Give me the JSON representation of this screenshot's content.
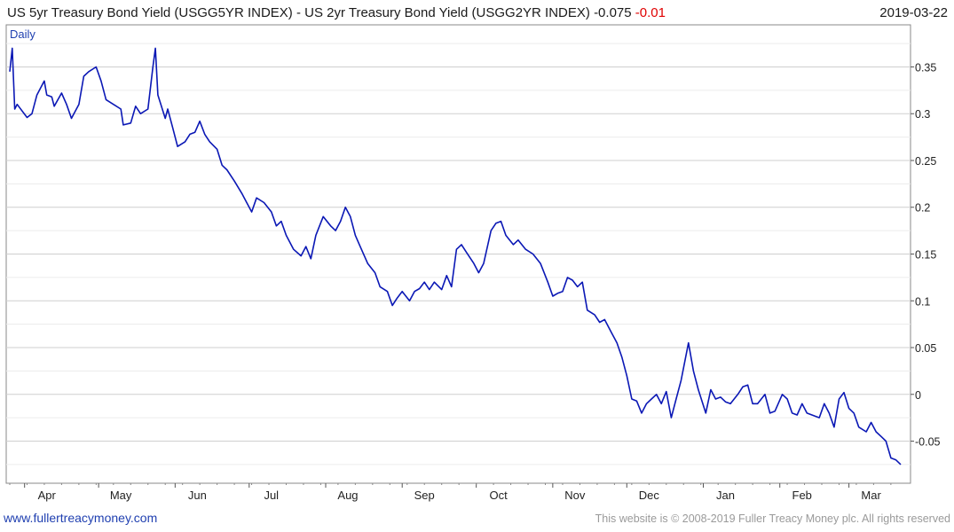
{
  "header": {
    "title": "US 5yr Treasury Bond Yield (USGG5YR INDEX) - US 2yr Treasury Bond Yield (USGG2YR INDEX)",
    "last_value": "-0.075",
    "change": "-0.01",
    "date": "2019-03-22"
  },
  "period_label": "Daily",
  "footer": {
    "site": "www.fullertreacymoney.com",
    "copyright": "This website is © 2008-2019 Fuller Treacy Money plc. All rights reserved"
  },
  "colors": {
    "line": "#0b18b5",
    "change": "#e00000",
    "grid": "#cfcfcf",
    "site_link": "#1f3fb0"
  },
  "chart_data": {
    "type": "line",
    "title": "US 5yr Treasury Bond Yield (USGG5YR INDEX) - US 2yr Treasury Bond Yield (USGG2YR INDEX)",
    "ylim": [
      -0.095,
      0.395
    ],
    "y_ticks": [
      0.35,
      0.3,
      0.25,
      0.2,
      0.15,
      0.1,
      0.05,
      0,
      -0.05
    ],
    "y_tick_labels": [
      "0.35",
      "0.3",
      "0.25",
      "0.2",
      "0.15",
      "0.1",
      "0.05",
      "0",
      "-0.05"
    ],
    "x_range": [
      "2018-03-26",
      "2019-03-22"
    ],
    "x_ticks": [
      {
        "date": "2018-04-01",
        "label": "Apr"
      },
      {
        "date": "2018-05-01",
        "label": "May"
      },
      {
        "date": "2018-06-01",
        "label": "Jun"
      },
      {
        "date": "2018-07-01",
        "label": "Jul"
      },
      {
        "date": "2018-08-01",
        "label": "Aug"
      },
      {
        "date": "2018-09-01",
        "label": "Sep"
      },
      {
        "date": "2018-10-01",
        "label": "Oct"
      },
      {
        "date": "2018-11-01",
        "label": "Nov"
      },
      {
        "date": "2018-12-01",
        "label": "Dec"
      },
      {
        "date": "2019-01-01",
        "label": "Jan"
      },
      {
        "date": "2019-02-01",
        "label": "Feb"
      },
      {
        "date": "2019-03-01",
        "label": "Mar"
      }
    ],
    "grid": true,
    "series": [
      {
        "values": [
          [
            "2018-03-26",
            0.345
          ],
          [
            "2018-03-27",
            0.37
          ],
          [
            "2018-03-28",
            0.305
          ],
          [
            "2018-03-29",
            0.31
          ],
          [
            "2018-04-02",
            0.296
          ],
          [
            "2018-04-04",
            0.3
          ],
          [
            "2018-04-06",
            0.32
          ],
          [
            "2018-04-09",
            0.335
          ],
          [
            "2018-04-10",
            0.32
          ],
          [
            "2018-04-12",
            0.318
          ],
          [
            "2018-04-13",
            0.308
          ],
          [
            "2018-04-16",
            0.322
          ],
          [
            "2018-04-18",
            0.31
          ],
          [
            "2018-04-20",
            0.295
          ],
          [
            "2018-04-23",
            0.31
          ],
          [
            "2018-04-25",
            0.34
          ],
          [
            "2018-04-27",
            0.345
          ],
          [
            "2018-04-30",
            0.35
          ],
          [
            "2018-05-02",
            0.335
          ],
          [
            "2018-05-04",
            0.315
          ],
          [
            "2018-05-07",
            0.31
          ],
          [
            "2018-05-10",
            0.305
          ],
          [
            "2018-05-11",
            0.288
          ],
          [
            "2018-05-14",
            0.29
          ],
          [
            "2018-05-16",
            0.308
          ],
          [
            "2018-05-18",
            0.3
          ],
          [
            "2018-05-21",
            0.305
          ],
          [
            "2018-05-23",
            0.35
          ],
          [
            "2018-05-24",
            0.37
          ],
          [
            "2018-05-25",
            0.32
          ],
          [
            "2018-05-28",
            0.295
          ],
          [
            "2018-05-29",
            0.305
          ],
          [
            "2018-05-31",
            0.285
          ],
          [
            "2018-06-02",
            0.265
          ],
          [
            "2018-06-05",
            0.27
          ],
          [
            "2018-06-07",
            0.278
          ],
          [
            "2018-06-09",
            0.28
          ],
          [
            "2018-06-11",
            0.292
          ],
          [
            "2018-06-13",
            0.278
          ],
          [
            "2018-06-15",
            0.27
          ],
          [
            "2018-06-18",
            0.262
          ],
          [
            "2018-06-20",
            0.245
          ],
          [
            "2018-06-22",
            0.24
          ],
          [
            "2018-06-25",
            0.228
          ],
          [
            "2018-06-28",
            0.215
          ],
          [
            "2018-06-30",
            0.205
          ],
          [
            "2018-07-02",
            0.195
          ],
          [
            "2018-07-04",
            0.21
          ],
          [
            "2018-07-07",
            0.205
          ],
          [
            "2018-07-10",
            0.195
          ],
          [
            "2018-07-12",
            0.18
          ],
          [
            "2018-07-14",
            0.185
          ],
          [
            "2018-07-16",
            0.17
          ],
          [
            "2018-07-19",
            0.155
          ],
          [
            "2018-07-22",
            0.148
          ],
          [
            "2018-07-24",
            0.158
          ],
          [
            "2018-07-26",
            0.145
          ],
          [
            "2018-07-28",
            0.17
          ],
          [
            "2018-07-31",
            0.19
          ],
          [
            "2018-08-03",
            0.18
          ],
          [
            "2018-08-05",
            0.175
          ],
          [
            "2018-08-07",
            0.185
          ],
          [
            "2018-08-09",
            0.2
          ],
          [
            "2018-08-11",
            0.19
          ],
          [
            "2018-08-13",
            0.17
          ],
          [
            "2018-08-15",
            0.158
          ],
          [
            "2018-08-18",
            0.14
          ],
          [
            "2018-08-21",
            0.13
          ],
          [
            "2018-08-23",
            0.115
          ],
          [
            "2018-08-26",
            0.11
          ],
          [
            "2018-08-28",
            0.095
          ],
          [
            "2018-08-30",
            0.103
          ],
          [
            "2018-09-01",
            0.11
          ],
          [
            "2018-09-04",
            0.1
          ],
          [
            "2018-09-06",
            0.11
          ],
          [
            "2018-09-08",
            0.113
          ],
          [
            "2018-09-10",
            0.12
          ],
          [
            "2018-09-12",
            0.112
          ],
          [
            "2018-09-14",
            0.12
          ],
          [
            "2018-09-17",
            0.112
          ],
          [
            "2018-09-19",
            0.127
          ],
          [
            "2018-09-21",
            0.115
          ],
          [
            "2018-09-23",
            0.155
          ],
          [
            "2018-09-25",
            0.16
          ],
          [
            "2018-09-27",
            0.152
          ],
          [
            "2018-09-30",
            0.14
          ],
          [
            "2018-10-02",
            0.13
          ],
          [
            "2018-10-04",
            0.14
          ],
          [
            "2018-10-07",
            0.175
          ],
          [
            "2018-10-09",
            0.183
          ],
          [
            "2018-10-11",
            0.185
          ],
          [
            "2018-10-13",
            0.17
          ],
          [
            "2018-10-16",
            0.16
          ],
          [
            "2018-10-18",
            0.165
          ],
          [
            "2018-10-21",
            0.155
          ],
          [
            "2018-10-24",
            0.15
          ],
          [
            "2018-10-27",
            0.14
          ],
          [
            "2018-10-30",
            0.12
          ],
          [
            "2018-11-01",
            0.105
          ],
          [
            "2018-11-03",
            0.108
          ],
          [
            "2018-11-05",
            0.11
          ],
          [
            "2018-11-07",
            0.125
          ],
          [
            "2018-11-09",
            0.122
          ],
          [
            "2018-11-11",
            0.115
          ],
          [
            "2018-11-13",
            0.12
          ],
          [
            "2018-11-15",
            0.09
          ],
          [
            "2018-11-18",
            0.085
          ],
          [
            "2018-11-20",
            0.077
          ],
          [
            "2018-11-22",
            0.08
          ],
          [
            "2018-11-25",
            0.065
          ],
          [
            "2018-11-27",
            0.055
          ],
          [
            "2018-11-29",
            0.04
          ],
          [
            "2018-12-01",
            0.02
          ],
          [
            "2018-12-03",
            -0.005
          ],
          [
            "2018-12-05",
            -0.007
          ],
          [
            "2018-12-07",
            -0.02
          ],
          [
            "2018-12-09",
            -0.01
          ],
          [
            "2018-12-11",
            -0.005
          ],
          [
            "2018-12-13",
            0
          ],
          [
            "2018-12-15",
            -0.01
          ],
          [
            "2018-12-17",
            0.003
          ],
          [
            "2018-12-19",
            -0.025
          ],
          [
            "2018-12-21",
            -0.005
          ],
          [
            "2018-12-23",
            0.015
          ],
          [
            "2018-12-26",
            0.055
          ],
          [
            "2018-12-28",
            0.025
          ],
          [
            "2018-12-30",
            0.005
          ],
          [
            "2019-01-02",
            -0.02
          ],
          [
            "2019-01-04",
            0.005
          ],
          [
            "2019-01-06",
            -0.005
          ],
          [
            "2019-01-08",
            -0.003
          ],
          [
            "2019-01-10",
            -0.008
          ],
          [
            "2019-01-12",
            -0.01
          ],
          [
            "2019-01-15",
            0
          ],
          [
            "2019-01-17",
            0.008
          ],
          [
            "2019-01-19",
            0.01
          ],
          [
            "2019-01-21",
            -0.01
          ],
          [
            "2019-01-23",
            -0.01
          ],
          [
            "2019-01-26",
            0
          ],
          [
            "2019-01-28",
            -0.02
          ],
          [
            "2019-01-30",
            -0.018
          ],
          [
            "2019-02-02",
            0
          ],
          [
            "2019-02-04",
            -0.005
          ],
          [
            "2019-02-06",
            -0.02
          ],
          [
            "2019-02-08",
            -0.022
          ],
          [
            "2019-02-10",
            -0.01
          ],
          [
            "2019-02-12",
            -0.02
          ],
          [
            "2019-02-14",
            -0.022
          ],
          [
            "2019-02-17",
            -0.025
          ],
          [
            "2019-02-19",
            -0.01
          ],
          [
            "2019-02-21",
            -0.02
          ],
          [
            "2019-02-23",
            -0.035
          ],
          [
            "2019-02-25",
            -0.005
          ],
          [
            "2019-02-27",
            0.002
          ],
          [
            "2019-03-01",
            -0.015
          ],
          [
            "2019-03-03",
            -0.02
          ],
          [
            "2019-03-05",
            -0.035
          ],
          [
            "2019-03-08",
            -0.04
          ],
          [
            "2019-03-10",
            -0.03
          ],
          [
            "2019-03-12",
            -0.04
          ],
          [
            "2019-03-14",
            -0.045
          ],
          [
            "2019-03-16",
            -0.05
          ],
          [
            "2019-03-18",
            -0.068
          ],
          [
            "2019-03-20",
            -0.07
          ],
          [
            "2019-03-22",
            -0.075
          ]
        ]
      }
    ]
  }
}
